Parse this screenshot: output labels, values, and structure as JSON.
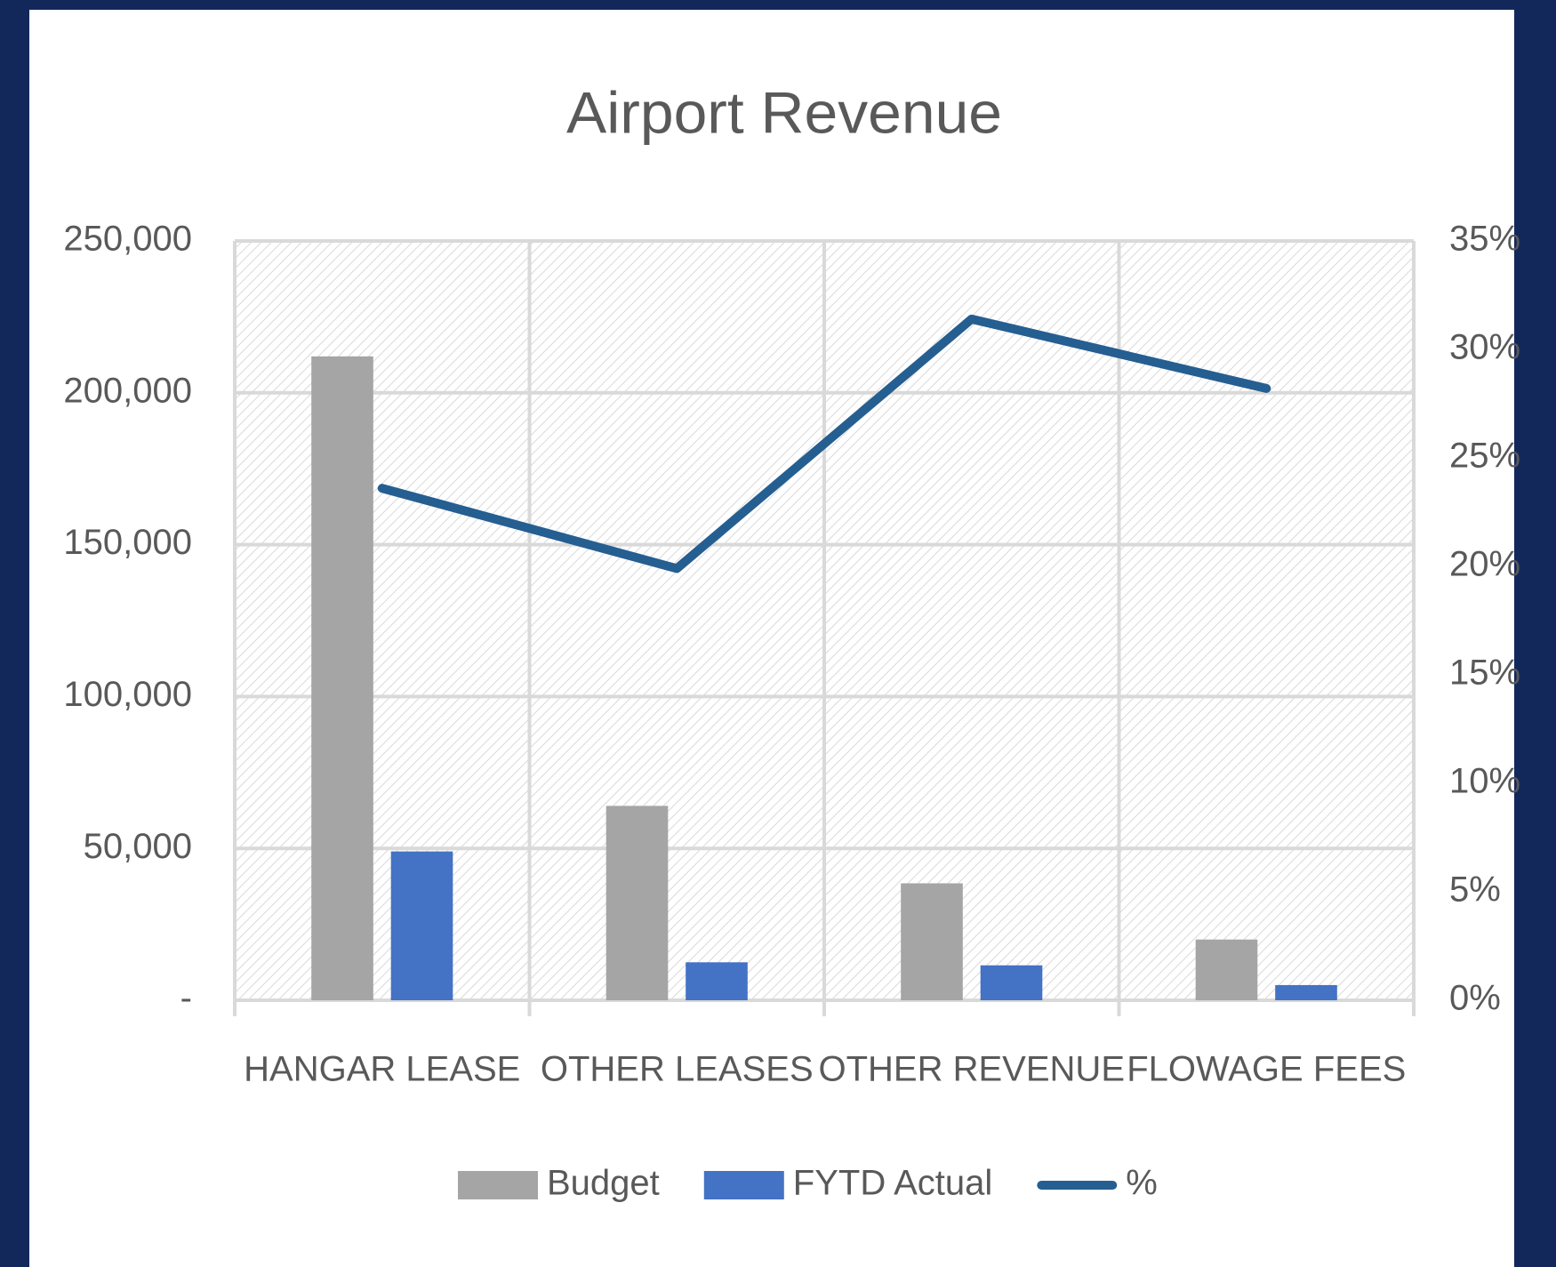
{
  "chart_data": {
    "type": "bar",
    "title": "Airport Revenue",
    "categories": [
      "HANGAR LEASE",
      "OTHER LEASES",
      "OTHER REVENUE",
      "FLOWAGE FEES"
    ],
    "series": [
      {
        "name": "Budget",
        "color": "#a5a5a5",
        "type": "bar",
        "values": [
          212000,
          64000,
          38500,
          20000
        ]
      },
      {
        "name": "FYTD Actual",
        "color": "#4472c4",
        "type": "bar",
        "values": [
          49000,
          12500,
          11500,
          5000
        ]
      },
      {
        "name": "%",
        "color": "#255e91",
        "type": "line",
        "axis": "y2",
        "values": [
          23.6,
          19.9,
          31.4,
          28.2
        ]
      }
    ],
    "ylim": [
      0,
      250000
    ],
    "yticks": [
      {
        "value": 0,
        "label": "-"
      },
      {
        "value": 50000,
        "label": "50,000"
      },
      {
        "value": 100000,
        "label": "100,000"
      },
      {
        "value": 150000,
        "label": "150,000"
      },
      {
        "value": 200000,
        "label": "200,000"
      },
      {
        "value": 250000,
        "label": "250,000"
      }
    ],
    "y2lim": [
      0,
      35
    ],
    "y2ticks": [
      {
        "value": 0,
        "label": "0%"
      },
      {
        "value": 5,
        "label": "5%"
      },
      {
        "value": 10,
        "label": "10%"
      },
      {
        "value": 15,
        "label": "15%"
      },
      {
        "value": 20,
        "label": "20%"
      },
      {
        "value": 25,
        "label": "25%"
      },
      {
        "value": 30,
        "label": "30%"
      },
      {
        "value": 35,
        "label": "35%"
      }
    ],
    "grid": true,
    "legend": "bottom"
  }
}
